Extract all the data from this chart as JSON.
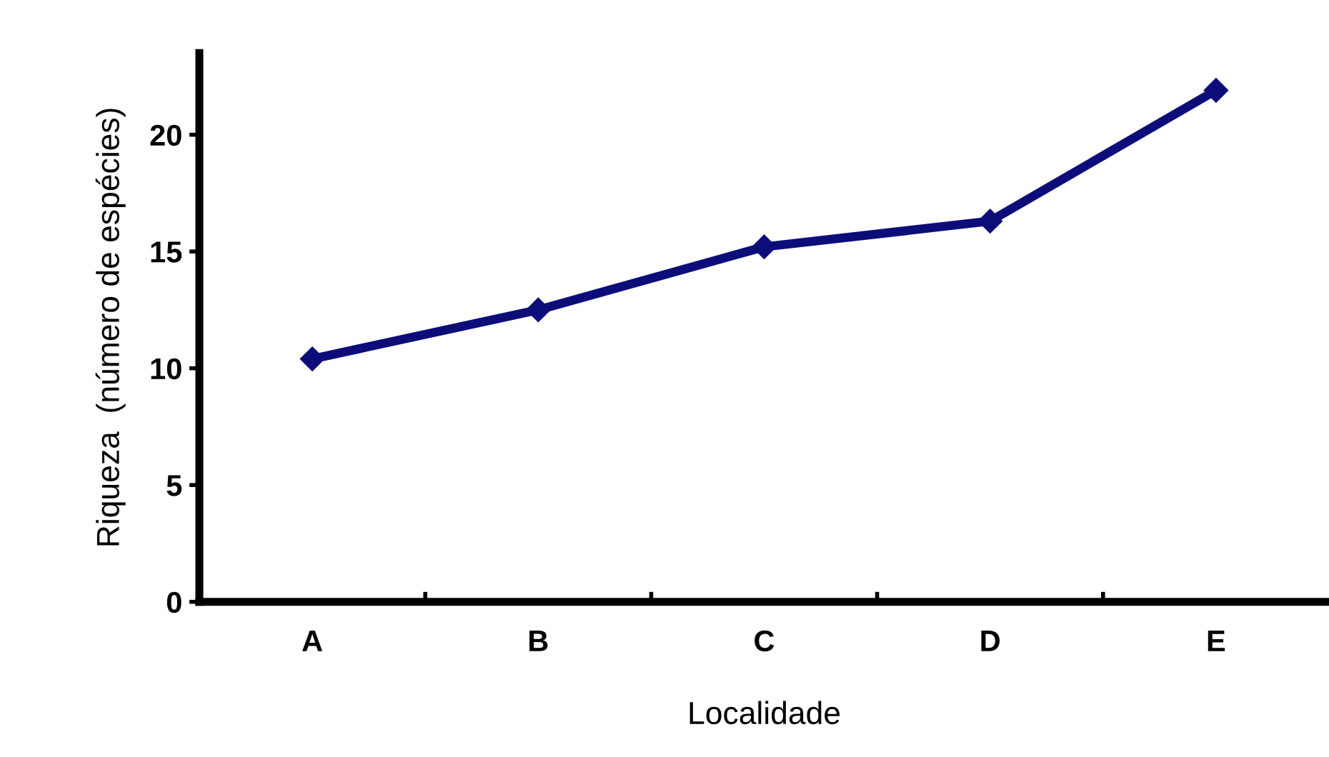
{
  "chart_data": {
    "type": "line",
    "xlabel": "Localidade",
    "ylabel": "Riqueza  (número de espécies)",
    "categories": [
      "A",
      "B",
      "C",
      "D",
      "E"
    ],
    "series": [
      {
        "color": "#0d0d7a",
        "values": [
          10.4,
          12.5,
          15.2,
          16.3,
          21.9
        ]
      }
    ],
    "ylim": [
      0,
      23.5
    ],
    "yticks": [
      0,
      5,
      10,
      15,
      20
    ],
    "grid": false,
    "marker": "diamond",
    "line_style": "solid"
  }
}
